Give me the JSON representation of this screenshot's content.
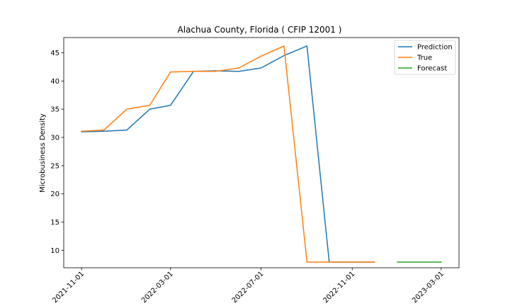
{
  "chart_data": {
    "type": "line",
    "title": "Alachua County, Florida ( CFIP 12001 )",
    "xlabel": "",
    "ylabel": "Microbusiness Density",
    "x_axis_type": "date",
    "xlim": [
      "2021-10-08",
      "2023-03-25"
    ],
    "ylim": [
      6.9,
      47.7
    ],
    "x_ticks": [
      "2021-11-01",
      "2022-03-01",
      "2022-07-01",
      "2022-11-01",
      "2023-03-01"
    ],
    "y_ticks": [
      10,
      15,
      20,
      25,
      30,
      35,
      40,
      45
    ],
    "legend_position": "top-right",
    "grid": false,
    "series": [
      {
        "name": "Prediction",
        "color": "#1f77b4",
        "points": [
          {
            "x": "2021-11-01",
            "y": 31.0
          },
          {
            "x": "2021-12-01",
            "y": 31.1
          },
          {
            "x": "2022-01-01",
            "y": 31.3
          },
          {
            "x": "2022-02-01",
            "y": 35.0
          },
          {
            "x": "2022-03-01",
            "y": 35.7
          },
          {
            "x": "2022-04-01",
            "y": 41.7
          },
          {
            "x": "2022-05-01",
            "y": 41.8
          },
          {
            "x": "2022-06-01",
            "y": 41.7
          },
          {
            "x": "2022-07-01",
            "y": 42.3
          },
          {
            "x": "2022-08-01",
            "y": 44.5
          },
          {
            "x": "2022-09-01",
            "y": 46.2
          },
          {
            "x": "2022-10-01",
            "y": 7.9
          },
          {
            "x": "2022-11-01",
            "y": 7.9
          },
          {
            "x": "2022-12-01",
            "y": 7.9
          }
        ]
      },
      {
        "name": "True",
        "color": "#ff7f0e",
        "points": [
          {
            "x": "2021-11-01",
            "y": 31.1
          },
          {
            "x": "2021-12-01",
            "y": 31.3
          },
          {
            "x": "2022-01-01",
            "y": 35.0
          },
          {
            "x": "2022-02-01",
            "y": 35.7
          },
          {
            "x": "2022-03-01",
            "y": 41.6
          },
          {
            "x": "2022-04-01",
            "y": 41.7
          },
          {
            "x": "2022-05-01",
            "y": 41.7
          },
          {
            "x": "2022-06-01",
            "y": 42.3
          },
          {
            "x": "2022-07-01",
            "y": 44.4
          },
          {
            "x": "2022-08-01",
            "y": 46.2
          },
          {
            "x": "2022-09-01",
            "y": 7.9
          },
          {
            "x": "2022-10-01",
            "y": 7.9
          },
          {
            "x": "2022-11-01",
            "y": 7.9
          },
          {
            "x": "2022-12-01",
            "y": 7.9
          }
        ]
      },
      {
        "name": "Forecast",
        "color": "#2ca02c",
        "points": [
          {
            "x": "2023-01-01",
            "y": 7.9
          },
          {
            "x": "2023-02-01",
            "y": 7.9
          },
          {
            "x": "2023-03-01",
            "y": 7.9
          }
        ]
      }
    ]
  }
}
